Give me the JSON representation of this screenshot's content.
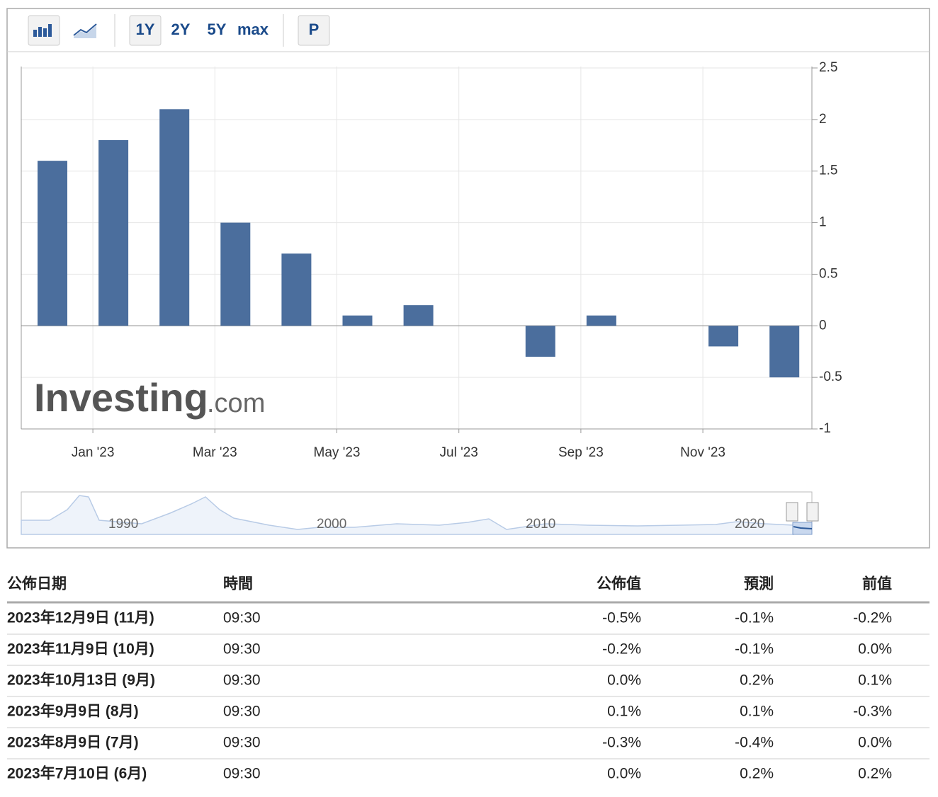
{
  "toolbar": {
    "ranges": [
      "1Y",
      "2Y",
      "5Y",
      "max"
    ],
    "print": "P"
  },
  "chart_data": {
    "type": "bar",
    "x": [
      "2022-12",
      "2023-01",
      "2023-02",
      "2023-03",
      "2023-04",
      "2023-05",
      "2023-06",
      "2023-07",
      "2023-08",
      "2023-09",
      "2023-10",
      "2023-11",
      "2023-12"
    ],
    "values": [
      1.6,
      1.8,
      2.1,
      1.0,
      0.7,
      0.1,
      0.2,
      0.0,
      -0.3,
      0.1,
      0.0,
      -0.2,
      -0.5
    ],
    "color": "#4b6e9d",
    "ylim": [
      -1,
      2.5
    ],
    "yticks": [
      2.5,
      2,
      1.5,
      1,
      0.5,
      0,
      -0.5,
      -1
    ],
    "xticks": [
      {
        "value": "2023-01",
        "label": "Jan '23"
      },
      {
        "value": "2023-03",
        "label": "Mar '23"
      },
      {
        "value": "2023-05",
        "label": "May '23"
      },
      {
        "value": "2023-07",
        "label": "Jul '23"
      },
      {
        "value": "2023-09",
        "label": "Sep '23"
      },
      {
        "value": "2023-11",
        "label": "Nov '23"
      }
    ],
    "grid": true,
    "watermark": {
      "name": "Investing",
      "domain": ".com"
    }
  },
  "navigator": {
    "labels": [
      "1990",
      "2000",
      "2010",
      "2020"
    ]
  },
  "table": {
    "header": [
      "公佈日期",
      "時間",
      "公佈值",
      "預測",
      "前值"
    ],
    "rows": [
      [
        "2023年12月9日 (11月)",
        "09:30",
        "-0.5%",
        "-0.1%",
        "-0.2%"
      ],
      [
        "2023年11月9日 (10月)",
        "09:30",
        "-0.2%",
        "-0.1%",
        "0.0%"
      ],
      [
        "2023年10月13日 (9月)",
        "09:30",
        "0.0%",
        "0.2%",
        "0.1%"
      ],
      [
        "2023年9月9日 (8月)",
        "09:30",
        "0.1%",
        "0.1%",
        "-0.3%"
      ],
      [
        "2023年8月9日 (7月)",
        "09:30",
        "-0.3%",
        "-0.4%",
        "0.0%"
      ],
      [
        "2023年7月10日 (6月)",
        "09:30",
        "0.0%",
        "0.2%",
        "0.2%"
      ]
    ],
    "actual_colors": [
      "#d91e18",
      "#d91e18",
      "#d91e18",
      "#222222",
      "#2a9a1b",
      "#d91e18"
    ]
  }
}
